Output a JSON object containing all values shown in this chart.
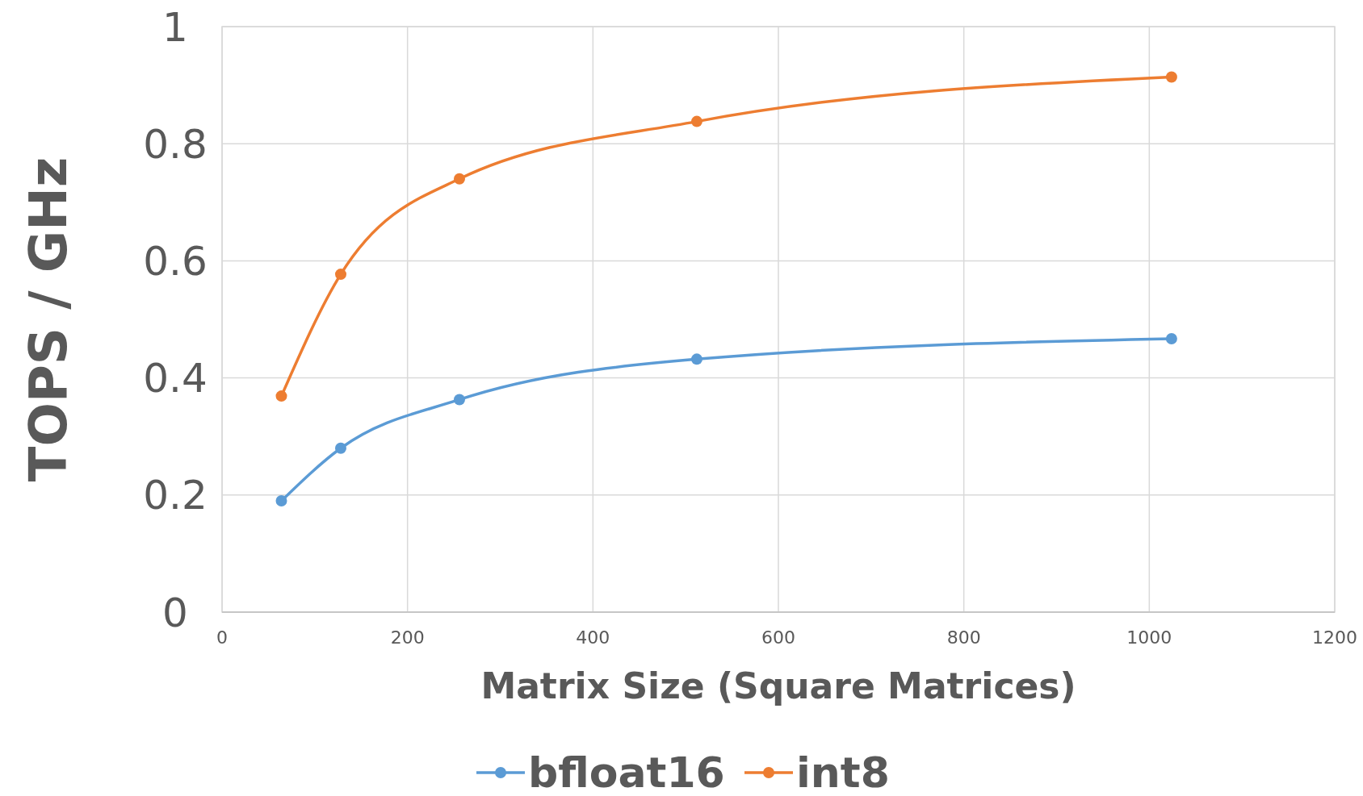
{
  "chart_data": {
    "type": "line",
    "xlabel": "Matrix Size (Square Matrices)",
    "ylabel": "TOPS / GHz",
    "x": [
      64,
      128,
      256,
      512,
      1024
    ],
    "series": [
      {
        "name": "bfloat16",
        "color": "#5b9bd5",
        "values": [
          0.19,
          0.28,
          0.363,
          0.432,
          0.467
        ]
      },
      {
        "name": "int8",
        "color": "#ed7d31",
        "values": [
          0.369,
          0.577,
          0.74,
          0.838,
          0.914
        ]
      }
    ],
    "xlim": [
      0,
      1200
    ],
    "xticks": [
      0,
      200,
      400,
      600,
      800,
      1000,
      1200
    ],
    "ylim": [
      0,
      1
    ],
    "yticks": [
      0,
      0.2,
      0.4,
      0.6,
      0.8,
      1
    ],
    "grid": true,
    "legend": "bottom",
    "marker": "circle",
    "line_style": "solid"
  }
}
